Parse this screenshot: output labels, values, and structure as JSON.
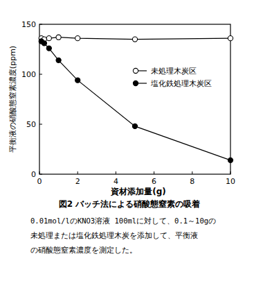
{
  "chart_data": {
    "type": "line",
    "title": "図2 バッチ法による硝酸態窒素の吸着",
    "annotations": [
      "0.01mol/lのKNO3溶液 100mlに対して、0.1～10gの",
      "未処理または塩化鉄処理木炭を添加して、平衡液",
      "の硝酸態窒素濃度を測定した。"
    ],
    "x_label": "資材添加量(g)",
    "y_label": "平衡液の硝酸態窒素濃度(ppm)",
    "x": [
      0.1,
      0.25,
      0.5,
      1,
      2,
      5,
      10
    ],
    "series": [
      {
        "name": "未処理木炭区",
        "color": "#000000",
        "marker": "open-circle",
        "line_style": "solid",
        "values": [
          136,
          135,
          136,
          137,
          136,
          135,
          136
        ]
      },
      {
        "name": "塩化鉄処理木炭区",
        "color": "#000000",
        "marker": "circle",
        "line_style": "solid",
        "values": [
          133,
          131,
          126,
          114,
          94,
          48,
          14
        ]
      }
    ],
    "xlim": [
      0,
      10
    ],
    "xticks": [
      0,
      2,
      4,
      6,
      8,
      10
    ],
    "ylim": [
      0,
      150
    ],
    "yticks": [
      0,
      50,
      100,
      150
    ],
    "grid": false,
    "legend": "upper right"
  }
}
